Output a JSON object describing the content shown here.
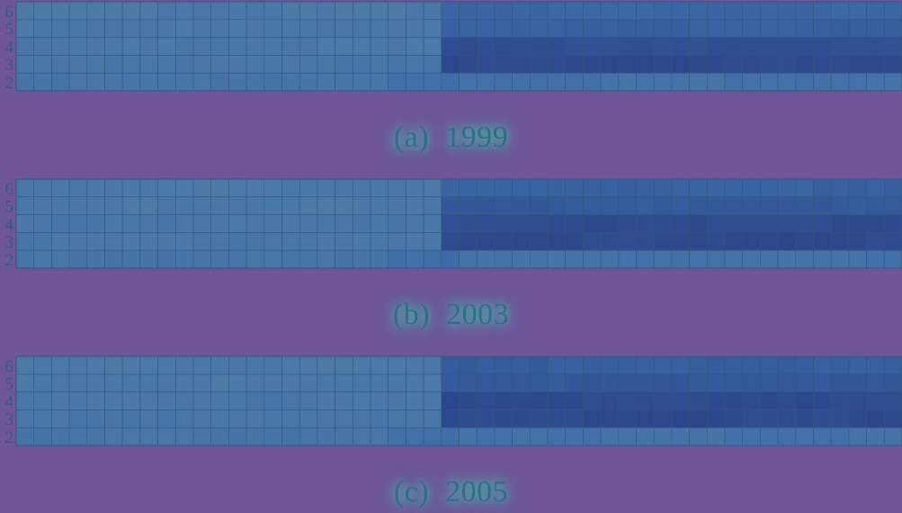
{
  "colors": {
    "background": "#6e5699",
    "caption_text": "#2c6f86",
    "caption_glow": "#48d0b4",
    "low": "#5683a8",
    "mid": "#3d6ba7",
    "high": "#283f86",
    "axis_text": "#2b6080",
    "grid_line": "#33557f"
  },
  "chart_data": [
    {
      "type": "heatmap",
      "caption": "(a)  1999",
      "y_categories": [
        "6",
        "5",
        "4",
        "3",
        "2"
      ],
      "n_columns": 50,
      "split_column": 24,
      "color_scale": "intensity 0-1; cells 0-23 low (~0.25), cells 24+ high (~0.6-0.9), row 2 low throughout",
      "rows": {
        "6": {
          "left": 0.22,
          "right": 0.55
        },
        "5": {
          "left": 0.24,
          "right": 0.62
        },
        "4": {
          "left": 0.25,
          "right": 0.82
        },
        "3": {
          "left": 0.26,
          "right": 0.88
        },
        "2": {
          "left": 0.3,
          "right": 0.35
        }
      }
    },
    {
      "type": "heatmap",
      "caption": "(b)  2003",
      "y_categories": [
        "6",
        "5",
        "4",
        "3",
        "2"
      ],
      "n_columns": 50,
      "split_column": 24,
      "color_scale": "intensity 0-1; cells 0-23 low (~0.25), cells 24+ high (~0.6-0.9), row 2 low throughout",
      "rows": {
        "6": {
          "left": 0.23,
          "right": 0.6
        },
        "5": {
          "left": 0.24,
          "right": 0.7
        },
        "4": {
          "left": 0.25,
          "right": 0.85
        },
        "3": {
          "left": 0.26,
          "right": 0.88
        },
        "2": {
          "left": 0.3,
          "right": 0.35
        }
      }
    },
    {
      "type": "heatmap",
      "caption": "(c)  2005",
      "y_categories": [
        "6",
        "5",
        "4",
        "3",
        "2"
      ],
      "n_columns": 50,
      "split_column": 24,
      "color_scale": "intensity 0-1; cells 0-23 low (~0.25), cells 24+ high (~0.6-0.9), row 2 low throughout",
      "rows": {
        "6": {
          "left": 0.23,
          "right": 0.65
        },
        "5": {
          "left": 0.24,
          "right": 0.72
        },
        "4": {
          "left": 0.25,
          "right": 0.86
        },
        "3": {
          "left": 0.26,
          "right": 0.88
        },
        "2": {
          "left": 0.3,
          "right": 0.35
        }
      }
    }
  ]
}
